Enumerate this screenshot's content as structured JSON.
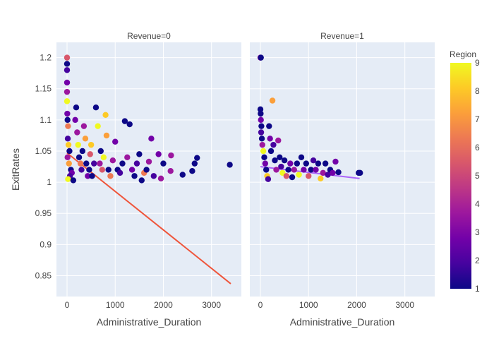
{
  "chart_data": {
    "type": "scatter",
    "xlabel": "Administrative_Duration",
    "ylabel": "ExitRates",
    "xlim": [
      -220,
      3620
    ],
    "ylim": [
      0.8165,
      1.2245
    ],
    "x_ticks": [
      0,
      1000,
      2000,
      3000
    ],
    "x_tick_labels": [
      "0",
      "1000",
      "2000",
      "3000"
    ],
    "y_ticks": [
      0.85,
      0.9,
      0.95,
      1,
      1.05,
      1.1,
      1.15,
      1.2
    ],
    "y_tick_labels": [
      "0.85",
      "0.9",
      "0.95",
      "1",
      "1.05",
      "1.1",
      "1.15",
      "1.2"
    ],
    "grid": true,
    "color_scale": {
      "title": "Region",
      "min": 1,
      "max": 9,
      "ticks": [
        "1",
        "2",
        "3",
        "4",
        "5",
        "6",
        "7",
        "8",
        "9"
      ],
      "colors": [
        "#0d0887",
        "#46039f",
        "#7201a8",
        "#9c179e",
        "#bd3786",
        "#d8576b",
        "#ed7953",
        "#fb9f3a",
        "#fdca26",
        "#f0f921"
      ]
    },
    "facets": [
      {
        "title": "Revenue=0",
        "trendline": {
          "x": [
            0,
            3400
          ],
          "y": [
            1.047,
            0.837
          ],
          "color": "#ef553b"
        },
        "points": [
          {
            "x": 0,
            "y": 1.2,
            "r": 5
          },
          {
            "x": 0,
            "y": 1.19,
            "r": 1
          },
          {
            "x": 0,
            "y": 1.18,
            "r": 2
          },
          {
            "x": 0,
            "y": 1.16,
            "r": 3
          },
          {
            "x": 0,
            "y": 1.145,
            "r": 4
          },
          {
            "x": 0,
            "y": 1.13,
            "r": 9
          },
          {
            "x": 5,
            "y": 1.11,
            "r": 3
          },
          {
            "x": 10,
            "y": 1.1,
            "r": 1
          },
          {
            "x": 20,
            "y": 1.09,
            "r": 6
          },
          {
            "x": 15,
            "y": 1.07,
            "r": 2
          },
          {
            "x": 30,
            "y": 1.06,
            "r": 8
          },
          {
            "x": 50,
            "y": 1.05,
            "r": 1
          },
          {
            "x": 10,
            "y": 1.04,
            "r": 4
          },
          {
            "x": 40,
            "y": 1.03,
            "r": 7
          },
          {
            "x": 80,
            "y": 1.02,
            "r": 1
          },
          {
            "x": 100,
            "y": 1.015,
            "r": 3
          },
          {
            "x": 60,
            "y": 1.01,
            "r": 2
          },
          {
            "x": 20,
            "y": 1.005,
            "r": 9
          },
          {
            "x": 130,
            "y": 1.003,
            "r": 1
          },
          {
            "x": 170,
            "y": 1.1,
            "r": 3
          },
          {
            "x": 190,
            "y": 1.12,
            "r": 1
          },
          {
            "x": 210,
            "y": 1.08,
            "r": 4
          },
          {
            "x": 230,
            "y": 1.06,
            "r": 9
          },
          {
            "x": 250,
            "y": 1.04,
            "r": 1
          },
          {
            "x": 280,
            "y": 1.03,
            "r": 6
          },
          {
            "x": 300,
            "y": 1.02,
            "r": 2
          },
          {
            "x": 320,
            "y": 1.05,
            "r": 1
          },
          {
            "x": 350,
            "y": 1.09,
            "r": 4
          },
          {
            "x": 380,
            "y": 1.07,
            "r": 7
          },
          {
            "x": 400,
            "y": 1.03,
            "r": 1
          },
          {
            "x": 430,
            "y": 1.01,
            "r": 3
          },
          {
            "x": 460,
            "y": 1.02,
            "r": 1
          },
          {
            "x": 480,
            "y": 1.045,
            "r": 5
          },
          {
            "x": 500,
            "y": 1.06,
            "r": 8
          },
          {
            "x": 520,
            "y": 1.01,
            "r": 1
          },
          {
            "x": 560,
            "y": 1.03,
            "r": 2
          },
          {
            "x": 600,
            "y": 1.12,
            "r": 1
          },
          {
            "x": 640,
            "y": 1.09,
            "r": 9
          },
          {
            "x": 680,
            "y": 1.03,
            "r": 4
          },
          {
            "x": 700,
            "y": 1.05,
            "r": 1
          },
          {
            "x": 730,
            "y": 1.02,
            "r": 5
          },
          {
            "x": 760,
            "y": 1.04,
            "r": 9
          },
          {
            "x": 800,
            "y": 1.108,
            "r": 8
          },
          {
            "x": 820,
            "y": 1.075,
            "r": 7
          },
          {
            "x": 860,
            "y": 1.02,
            "r": 1
          },
          {
            "x": 900,
            "y": 1.01,
            "r": 6
          },
          {
            "x": 950,
            "y": 1.035,
            "r": 4
          },
          {
            "x": 1000,
            "y": 1.065,
            "r": 3
          },
          {
            "x": 1050,
            "y": 1.02,
            "r": 1
          },
          {
            "x": 1100,
            "y": 1.015,
            "r": 2
          },
          {
            "x": 1150,
            "y": 1.03,
            "r": 1
          },
          {
            "x": 1200,
            "y": 1.098,
            "r": 1
          },
          {
            "x": 1250,
            "y": 1.04,
            "r": 4
          },
          {
            "x": 1300,
            "y": 1.093,
            "r": 1
          },
          {
            "x": 1350,
            "y": 1.02,
            "r": 3
          },
          {
            "x": 1400,
            "y": 1.01,
            "r": 1
          },
          {
            "x": 1450,
            "y": 1.03,
            "r": 2
          },
          {
            "x": 1500,
            "y": 1.045,
            "r": 1
          },
          {
            "x": 1550,
            "y": 1.003,
            "r": 1
          },
          {
            "x": 1600,
            "y": 1.015,
            "r": 6
          },
          {
            "x": 1650,
            "y": 1.02,
            "r": 1
          },
          {
            "x": 1700,
            "y": 1.033,
            "r": 4
          },
          {
            "x": 1750,
            "y": 1.07,
            "r": 3
          },
          {
            "x": 1800,
            "y": 1.01,
            "r": 2
          },
          {
            "x": 1900,
            "y": 1.045,
            "r": 3
          },
          {
            "x": 1950,
            "y": 1.006,
            "r": 4
          },
          {
            "x": 2000,
            "y": 1.03,
            "r": 1
          },
          {
            "x": 2150,
            "y": 1.018,
            "r": 4
          },
          {
            "x": 2160,
            "y": 1.043,
            "r": 4
          },
          {
            "x": 2400,
            "y": 1.012,
            "r": 1
          },
          {
            "x": 2600,
            "y": 1.018,
            "r": 1
          },
          {
            "x": 2650,
            "y": 1.03,
            "r": 1
          },
          {
            "x": 2700,
            "y": 1.039,
            "r": 1
          },
          {
            "x": 3380,
            "y": 1.028,
            "r": 1
          }
        ]
      },
      {
        "title": "Revenue=1",
        "trendline": {
          "x": [
            0,
            2060
          ],
          "y": [
            1.025,
            1.006
          ],
          "color": "#ab63fa"
        },
        "points": [
          {
            "x": 0,
            "y": 1.2,
            "r": 4
          },
          {
            "x": 10,
            "y": 1.2,
            "r": 1
          },
          {
            "x": 0,
            "y": 1.117,
            "r": 1
          },
          {
            "x": 5,
            "y": 1.11,
            "r": 1
          },
          {
            "x": 10,
            "y": 1.1,
            "r": 3
          },
          {
            "x": 20,
            "y": 1.09,
            "r": 1
          },
          {
            "x": 15,
            "y": 1.08,
            "r": 2
          },
          {
            "x": 30,
            "y": 1.07,
            "r": 1
          },
          {
            "x": 40,
            "y": 1.06,
            "r": 4
          },
          {
            "x": 60,
            "y": 1.05,
            "r": 9
          },
          {
            "x": 80,
            "y": 1.04,
            "r": 1
          },
          {
            "x": 100,
            "y": 1.03,
            "r": 3
          },
          {
            "x": 120,
            "y": 1.02,
            "r": 1
          },
          {
            "x": 140,
            "y": 1.01,
            "r": 8
          },
          {
            "x": 160,
            "y": 1.005,
            "r": 2
          },
          {
            "x": 180,
            "y": 1.09,
            "r": 1
          },
          {
            "x": 200,
            "y": 1.07,
            "r": 3
          },
          {
            "x": 220,
            "y": 1.05,
            "r": 1
          },
          {
            "x": 250,
            "y": 1.131,
            "r": 7
          },
          {
            "x": 270,
            "y": 1.06,
            "r": 2
          },
          {
            "x": 300,
            "y": 1.035,
            "r": 1
          },
          {
            "x": 330,
            "y": 1.02,
            "r": 4
          },
          {
            "x": 370,
            "y": 1.067,
            "r": 4
          },
          {
            "x": 400,
            "y": 1.04,
            "r": 1
          },
          {
            "x": 430,
            "y": 1.025,
            "r": 2
          },
          {
            "x": 460,
            "y": 1.015,
            "r": 9
          },
          {
            "x": 500,
            "y": 1.035,
            "r": 1
          },
          {
            "x": 540,
            "y": 1.01,
            "r": 5
          },
          {
            "x": 580,
            "y": 1.02,
            "r": 1
          },
          {
            "x": 620,
            "y": 1.03,
            "r": 3
          },
          {
            "x": 660,
            "y": 1.008,
            "r": 1
          },
          {
            "x": 700,
            "y": 1.02,
            "r": 4
          },
          {
            "x": 760,
            "y": 1.03,
            "r": 1
          },
          {
            "x": 800,
            "y": 1.012,
            "r": 9
          },
          {
            "x": 850,
            "y": 1.04,
            "r": 1
          },
          {
            "x": 900,
            "y": 1.02,
            "r": 3
          },
          {
            "x": 950,
            "y": 1.03,
            "r": 1
          },
          {
            "x": 1000,
            "y": 1.01,
            "r": 5
          },
          {
            "x": 1050,
            "y": 1.02,
            "r": 1
          },
          {
            "x": 1100,
            "y": 1.035,
            "r": 2
          },
          {
            "x": 1150,
            "y": 1.02,
            "r": 3
          },
          {
            "x": 1200,
            "y": 1.03,
            "r": 1
          },
          {
            "x": 1250,
            "y": 1.006,
            "r": 8
          },
          {
            "x": 1300,
            "y": 1.015,
            "r": 4
          },
          {
            "x": 1350,
            "y": 1.03,
            "r": 1
          },
          {
            "x": 1400,
            "y": 1.012,
            "r": 2
          },
          {
            "x": 1450,
            "y": 1.02,
            "r": 1
          },
          {
            "x": 1500,
            "y": 1.015,
            "r": 3
          },
          {
            "x": 1560,
            "y": 1.033,
            "r": 3
          },
          {
            "x": 1620,
            "y": 1.016,
            "r": 1
          },
          {
            "x": 2040,
            "y": 1.015,
            "r": 1
          },
          {
            "x": 2070,
            "y": 1.015,
            "r": 1
          }
        ]
      }
    ]
  }
}
